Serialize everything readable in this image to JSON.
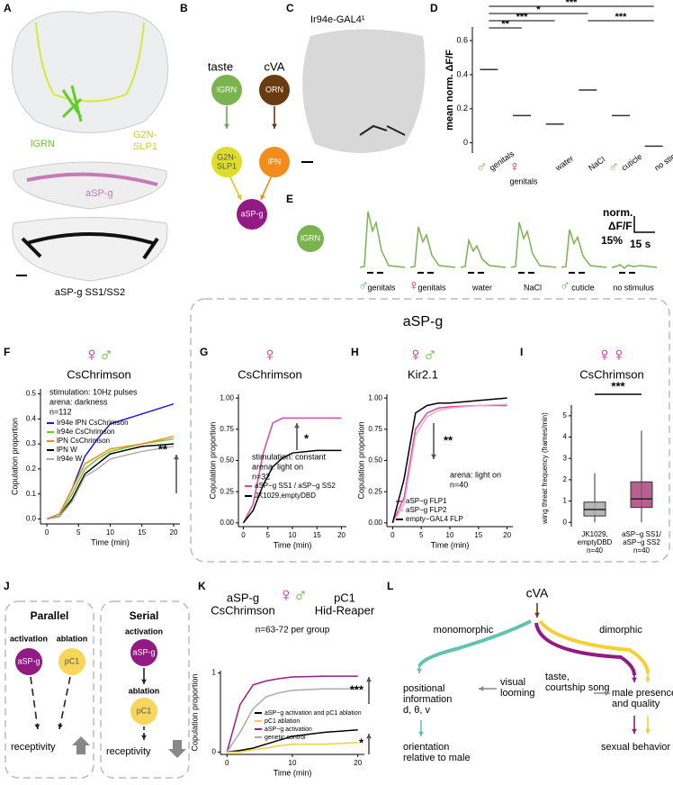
{
  "A": {
    "label": "A",
    "lgrn": "lGRN",
    "g2n": [
      "G2N-",
      "SLP1"
    ],
    "asp": "aSP-g",
    "caption": "aSP-g SS1/SS2"
  },
  "B": {
    "label": "B",
    "taste": "taste",
    "cva": "cVA",
    "lgrn": "lGRN",
    "g2n": [
      "G2N-",
      "SLP1"
    ],
    "orn": "ORN",
    "lpn": "lPN",
    "asp": "aSP-g"
  },
  "C": {
    "label": "C",
    "title": "Ir94e-GAL4¹"
  },
  "D": {
    "label": "D",
    "ylabel": "mean norm. ΔF/F",
    "ylim": [
      -0.06,
      0.68
    ],
    "yticks": [
      0,
      0.2,
      0.4,
      0.6
    ],
    "categories": [
      "genitals",
      "genitals",
      "water",
      "NaCl",
      "cuticle",
      "no stimulus"
    ],
    "symbols": [
      "♂",
      "♀",
      null,
      null,
      "♂",
      null
    ],
    "medians": [
      0.43,
      0.16,
      0.11,
      0.31,
      0.16,
      -0.02
    ],
    "sig": [
      "***",
      "*",
      "***",
      "***",
      "**"
    ]
  },
  "E": {
    "label": "E",
    "node": "lGRN",
    "conditions": [
      "genitals",
      "genitals",
      "water",
      "NaCl",
      "cuticle",
      "no stimulus"
    ],
    "symbols": [
      "♂",
      "♀",
      null,
      null,
      "♂",
      null
    ],
    "scale": [
      "norm.",
      "ΔF/F",
      "15%",
      "15 s"
    ]
  },
  "group": "aSP-g",
  "F": {
    "label": "F",
    "symbols": [
      "♀",
      "♂"
    ],
    "title": "CsChrimson",
    "notes": [
      "stimulation: 10Hz pulses",
      "arena: darkness",
      "n=112"
    ],
    "sig": "**",
    "ylabel": "Copulation proportion",
    "xlabel": "Time (min)",
    "xlim": [
      -1,
      21
    ],
    "ylim": [
      -0.02,
      0.52
    ],
    "xticks": [
      0,
      5,
      10,
      15,
      20
    ],
    "yticks": [
      {
        "value": 0,
        "label": "0.0"
      },
      0.1,
      0.2,
      0.3,
      0.4,
      0.5
    ],
    "x": [
      0,
      2,
      4,
      6,
      8,
      10,
      15,
      20
    ],
    "series": [
      {
        "name": "Ir94e lPN CsChrimson",
        "color": "#1a1adb",
        "values": [
          0,
          0.02,
          0.12,
          0.25,
          0.32,
          0.38,
          0.42,
          0.46
        ]
      },
      {
        "name": "Ir94e CsChrimson",
        "color": "#66cc33",
        "values": [
          0,
          0.01,
          0.1,
          0.2,
          0.24,
          0.27,
          0.3,
          0.32
        ]
      },
      {
        "name": "lPN CsChrimson",
        "color": "#f08c1a",
        "values": [
          0,
          0.02,
          0.12,
          0.22,
          0.25,
          0.28,
          0.3,
          0.33
        ]
      },
      {
        "name": "lPN W",
        "color": "#000000",
        "values": [
          0,
          0.01,
          0.08,
          0.18,
          0.22,
          0.26,
          0.29,
          0.3
        ]
      },
      {
        "name": "Ir94e W",
        "color": "#aaaaaa",
        "values": [
          0,
          0.01,
          0.07,
          0.17,
          0.2,
          0.24,
          0.27,
          0.29
        ]
      }
    ]
  },
  "G": {
    "label": "G",
    "symbols": [
      "♀"
    ],
    "title": "CsChrimson",
    "notes": [
      "stimulation: constant",
      "arena: light on",
      "n=32"
    ],
    "sig": "*",
    "ylabel": "Copulation proportion",
    "xlabel": "Time (min)",
    "xlim": [
      -1,
      21
    ],
    "ylim": [
      -0.03,
      1.03
    ],
    "xticks": [
      0,
      5,
      10,
      15,
      20
    ],
    "yticks": [
      {
        "value": 0,
        "label": "0.00"
      },
      0.25,
      {
        "value": 0.5,
        "label": "0.50"
      },
      0.75,
      {
        "value": 1,
        "label": "1.00"
      }
    ],
    "x": [
      0,
      2,
      4,
      6,
      8,
      10,
      15,
      20
    ],
    "series": [
      {
        "name": "aSP−g SS1 / aSP−g SS2",
        "color": "#d44a9e",
        "values": [
          0,
          0.15,
          0.55,
          0.8,
          0.84,
          0.84,
          0.84,
          0.84
        ]
      },
      {
        "name": "JK1029,emptyDBD",
        "color": "#000000",
        "values": [
          0,
          0.1,
          0.3,
          0.45,
          0.52,
          0.56,
          0.58,
          0.58
        ]
      }
    ]
  },
  "H": {
    "label": "H",
    "symbols": [
      "♀",
      "♂"
    ],
    "title": "Kir2.1",
    "notes": [
      "arena: light on",
      "n=40"
    ],
    "sig": "**",
    "ylabel": "Copulation proportion",
    "xlabel": "Time (min)",
    "xlim": [
      -1,
      21
    ],
    "ylim": [
      -0.03,
      1.03
    ],
    "xticks": [
      0,
      5,
      10,
      15,
      20
    ],
    "yticks": [
      {
        "value": 0,
        "label": "0.00"
      },
      0.25,
      {
        "value": 0.5,
        "label": "0.50"
      },
      0.75,
      {
        "value": 1,
        "label": "1.00"
      }
    ],
    "x": [
      0,
      2,
      4,
      6,
      8,
      10,
      15,
      20
    ],
    "series": [
      {
        "name": "aSP−g FLP1",
        "color": "#d44a9e",
        "values": [
          0,
          0.2,
          0.75,
          0.88,
          0.92,
          0.93,
          0.94,
          0.94
        ]
      },
      {
        "name": "aSP−g FLP2",
        "color": "#eeaacc",
        "values": [
          0,
          0.15,
          0.7,
          0.85,
          0.9,
          0.92,
          0.94,
          0.95
        ]
      },
      {
        "name": "empty−GAL4 FLP",
        "color": "#000000",
        "values": [
          0,
          0.35,
          0.88,
          0.94,
          0.96,
          0.96,
          0.98,
          1
        ]
      }
    ]
  },
  "I": {
    "label": "I",
    "symbols": [
      "♀",
      "♀"
    ],
    "title": "CsChrimson",
    "sig": "***",
    "ylabel": "wing threat frequency (frames/min)",
    "ylim": [
      -0.2,
      5.5
    ],
    "yticks": [
      0,
      1,
      2,
      3,
      4,
      5
    ],
    "categories": [
      [
        "JK1029,",
        "emptyDBD",
        "n=40"
      ],
      [
        "aSP−g SS1/",
        "aSP−g SS2",
        "n=40"
      ]
    ],
    "colors": [
      "#aaaaaa",
      "#a8477e"
    ],
    "medians": [
      0.6,
      1.1
    ],
    "q1": [
      0.3,
      0.7
    ],
    "q3": [
      0.95,
      1.9
    ],
    "lo": [
      0,
      0
    ],
    "hi": [
      2.3,
      4.3
    ]
  },
  "J": {
    "label": "J",
    "parallel": "Parallel",
    "serial": "Serial",
    "activation": "activation",
    "ablation": "ablation",
    "asp": "aSP-g",
    "pc1": "pC1",
    "receptivity": "receptivity"
  },
  "K": {
    "label": "K",
    "left": [
      "aSP-g",
      "CsChrimson"
    ],
    "right": [
      "pC1",
      "Hid-Reaper"
    ],
    "symbols": [
      "♀",
      "♂"
    ],
    "n": "n=63-72 per group",
    "sig": [
      "***",
      "*"
    ],
    "ylabel": "Copulation proportion",
    "xlabel": "Time (min)",
    "xlim": [
      -1,
      21
    ],
    "ylim": [
      -0.03,
      1.03
    ],
    "xticks": [
      0,
      10,
      20
    ],
    "yticks": [
      0,
      1
    ],
    "x": [
      0,
      2,
      4,
      6,
      8,
      10,
      15,
      20
    ],
    "series": [
      {
        "name": "aSP−g activation and pC1 ablation",
        "color": "#000000",
        "values": [
          0,
          0.02,
          0.05,
          0.1,
          0.15,
          0.2,
          0.25,
          0.28
        ]
      },
      {
        "name": "pC1 ablation",
        "color": "#f5d033",
        "values": [
          0,
          0,
          0.03,
          0.05,
          0.08,
          0.1,
          0.1,
          0.12
        ]
      },
      {
        "name": "aSP−g activation",
        "color": "#9b1a8c",
        "values": [
          0,
          0.6,
          0.85,
          0.9,
          0.93,
          0.95,
          0.96,
          0.96
        ]
      },
      {
        "name": "genetic control",
        "color": "#aaaaaa",
        "values": [
          0,
          0.25,
          0.55,
          0.7,
          0.75,
          0.78,
          0.8,
          0.8
        ]
      }
    ]
  },
  "L": {
    "label": "L",
    "cva": "cVA",
    "mono": "monomorphic",
    "di": "dimorphic",
    "pos": [
      "positional",
      "information",
      "d, θ, v"
    ],
    "visual": [
      "visual",
      "looming"
    ],
    "taste": [
      "taste,",
      "courtship song"
    ],
    "male": [
      "male presence",
      "and quality"
    ],
    "orient": [
      "orientation",
      "relative to male"
    ],
    "sexual": "sexual behavior"
  }
}
